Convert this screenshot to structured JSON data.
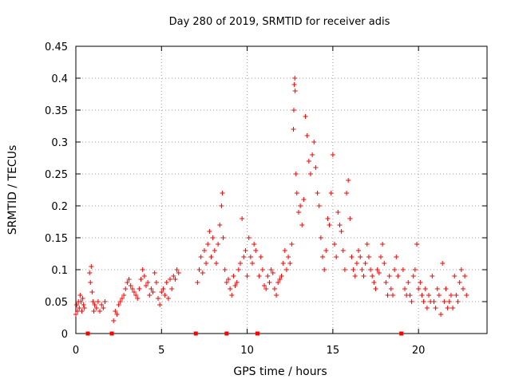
{
  "chart_data": {
    "type": "scatter",
    "title": "Day 280 of 2019, SRMTID for receiver adis",
    "xlabel": "GPS time / hours",
    "ylabel": "SRMTID / TECUs",
    "xlim": [
      0,
      24
    ],
    "ylim": [
      0,
      0.45
    ],
    "xticks": [
      0,
      5,
      10,
      15,
      20
    ],
    "xtick_labels": [
      "0",
      "5",
      "10",
      "15",
      "20"
    ],
    "yticks": [
      0,
      0.05,
      0.1,
      0.15,
      0.2,
      0.25,
      0.3,
      0.35,
      0.4,
      0.45
    ],
    "ytick_labels": [
      "0",
      "0.05",
      "0.1",
      "0.15",
      "0.2",
      "0.25",
      "0.3",
      "0.35",
      "0.4",
      "0.45"
    ],
    "grid": true,
    "marker": "+",
    "colors": {
      "series": "#ff0000",
      "gap_marker": "#ff0000",
      "grid": "#a0a0a0",
      "axis": "#000000"
    },
    "gap_markers_x": [
      0.7,
      2.1,
      7.0,
      8.8,
      10.6,
      19.0
    ],
    "series": [
      {
        "name": "SRMTID",
        "points": [
          [
            0.0,
            0.03
          ],
          [
            0.05,
            0.045
          ],
          [
            0.1,
            0.035
          ],
          [
            0.15,
            0.05
          ],
          [
            0.2,
            0.04
          ],
          [
            0.25,
            0.06
          ],
          [
            0.3,
            0.05
          ],
          [
            0.35,
            0.035
          ],
          [
            0.4,
            0.055
          ],
          [
            0.45,
            0.045
          ],
          [
            0.5,
            0.04
          ],
          [
            0.8,
            0.095
          ],
          [
            0.85,
            0.08
          ],
          [
            0.9,
            0.105
          ],
          [
            0.95,
            0.065
          ],
          [
            1.0,
            0.05
          ],
          [
            1.05,
            0.035
          ],
          [
            1.1,
            0.045
          ],
          [
            1.2,
            0.04
          ],
          [
            1.3,
            0.05
          ],
          [
            1.4,
            0.035
          ],
          [
            1.5,
            0.045
          ],
          [
            1.6,
            0.04
          ],
          [
            1.7,
            0.05
          ],
          [
            2.2,
            0.02
          ],
          [
            2.3,
            0.035
          ],
          [
            2.4,
            0.03
          ],
          [
            2.5,
            0.045
          ],
          [
            2.6,
            0.05
          ],
          [
            2.7,
            0.055
          ],
          [
            2.8,
            0.06
          ],
          [
            2.9,
            0.07
          ],
          [
            3.0,
            0.08
          ],
          [
            3.1,
            0.085
          ],
          [
            3.2,
            0.075
          ],
          [
            3.3,
            0.07
          ],
          [
            3.4,
            0.065
          ],
          [
            3.5,
            0.06
          ],
          [
            3.6,
            0.055
          ],
          [
            3.7,
            0.07
          ],
          [
            3.8,
            0.085
          ],
          [
            3.9,
            0.1
          ],
          [
            4.0,
            0.09
          ],
          [
            4.1,
            0.075
          ],
          [
            4.2,
            0.08
          ],
          [
            4.3,
            0.06
          ],
          [
            4.4,
            0.07
          ],
          [
            4.5,
            0.065
          ],
          [
            4.6,
            0.095
          ],
          [
            4.7,
            0.08
          ],
          [
            4.8,
            0.055
          ],
          [
            4.9,
            0.045
          ],
          [
            5.0,
            0.065
          ],
          [
            5.1,
            0.07
          ],
          [
            5.2,
            0.06
          ],
          [
            5.3,
            0.08
          ],
          [
            5.4,
            0.055
          ],
          [
            5.5,
            0.085
          ],
          [
            5.6,
            0.07
          ],
          [
            5.7,
            0.09
          ],
          [
            5.8,
            0.085
          ],
          [
            5.9,
            0.1
          ],
          [
            6.0,
            0.095
          ],
          [
            7.1,
            0.08
          ],
          [
            7.2,
            0.1
          ],
          [
            7.3,
            0.12
          ],
          [
            7.4,
            0.095
          ],
          [
            7.5,
            0.13
          ],
          [
            7.6,
            0.11
          ],
          [
            7.7,
            0.14
          ],
          [
            7.8,
            0.16
          ],
          [
            7.9,
            0.12
          ],
          [
            8.0,
            0.15
          ],
          [
            8.1,
            0.13
          ],
          [
            8.2,
            0.11
          ],
          [
            8.3,
            0.14
          ],
          [
            8.4,
            0.17
          ],
          [
            8.5,
            0.2
          ],
          [
            8.55,
            0.22
          ],
          [
            8.6,
            0.15
          ],
          [
            8.7,
            0.1
          ],
          [
            8.8,
            0.08
          ],
          [
            8.9,
            0.085
          ],
          [
            9.0,
            0.07
          ],
          [
            9.1,
            0.06
          ],
          [
            9.2,
            0.09
          ],
          [
            9.3,
            0.075
          ],
          [
            9.4,
            0.08
          ],
          [
            9.5,
            0.1
          ],
          [
            9.6,
            0.11
          ],
          [
            9.7,
            0.18
          ],
          [
            9.8,
            0.12
          ],
          [
            9.9,
            0.13
          ],
          [
            10.0,
            0.09
          ],
          [
            10.1,
            0.15
          ],
          [
            10.2,
            0.12
          ],
          [
            10.3,
            0.11
          ],
          [
            10.4,
            0.14
          ],
          [
            10.5,
            0.13
          ],
          [
            10.7,
            0.09
          ],
          [
            10.8,
            0.12
          ],
          [
            10.9,
            0.1
          ],
          [
            11.0,
            0.075
          ],
          [
            11.1,
            0.07
          ],
          [
            11.2,
            0.09
          ],
          [
            11.3,
            0.08
          ],
          [
            11.4,
            0.1
          ],
          [
            11.5,
            0.095
          ],
          [
            11.6,
            0.07
          ],
          [
            11.7,
            0.06
          ],
          [
            11.8,
            0.08
          ],
          [
            11.9,
            0.085
          ],
          [
            12.0,
            0.09
          ],
          [
            12.1,
            0.11
          ],
          [
            12.2,
            0.13
          ],
          [
            12.3,
            0.1
          ],
          [
            12.4,
            0.12
          ],
          [
            12.5,
            0.11
          ],
          [
            12.6,
            0.14
          ],
          [
            12.7,
            0.32
          ],
          [
            12.72,
            0.35
          ],
          [
            12.75,
            0.39
          ],
          [
            12.78,
            0.4
          ],
          [
            12.8,
            0.38
          ],
          [
            12.85,
            0.25
          ],
          [
            12.9,
            0.22
          ],
          [
            13.0,
            0.19
          ],
          [
            13.1,
            0.2
          ],
          [
            13.2,
            0.17
          ],
          [
            13.3,
            0.21
          ],
          [
            13.4,
            0.34
          ],
          [
            13.5,
            0.31
          ],
          [
            13.6,
            0.27
          ],
          [
            13.7,
            0.25
          ],
          [
            13.8,
            0.28
          ],
          [
            13.9,
            0.3
          ],
          [
            14.0,
            0.26
          ],
          [
            14.1,
            0.22
          ],
          [
            14.2,
            0.2
          ],
          [
            14.3,
            0.15
          ],
          [
            14.4,
            0.12
          ],
          [
            14.5,
            0.1
          ],
          [
            14.6,
            0.13
          ],
          [
            14.7,
            0.18
          ],
          [
            14.8,
            0.17
          ],
          [
            14.9,
            0.22
          ],
          [
            15.0,
            0.28
          ],
          [
            15.1,
            0.14
          ],
          [
            15.2,
            0.12
          ],
          [
            15.3,
            0.19
          ],
          [
            15.4,
            0.17
          ],
          [
            15.5,
            0.16
          ],
          [
            15.6,
            0.13
          ],
          [
            15.7,
            0.1
          ],
          [
            15.8,
            0.22
          ],
          [
            15.9,
            0.24
          ],
          [
            16.0,
            0.18
          ],
          [
            16.1,
            0.12
          ],
          [
            16.2,
            0.1
          ],
          [
            16.3,
            0.09
          ],
          [
            16.4,
            0.11
          ],
          [
            16.5,
            0.13
          ],
          [
            16.6,
            0.12
          ],
          [
            16.7,
            0.1
          ],
          [
            16.8,
            0.09
          ],
          [
            16.9,
            0.11
          ],
          [
            17.0,
            0.14
          ],
          [
            17.1,
            0.12
          ],
          [
            17.2,
            0.1
          ],
          [
            17.3,
            0.09
          ],
          [
            17.4,
            0.08
          ],
          [
            17.5,
            0.07
          ],
          [
            17.6,
            0.1
          ],
          [
            17.7,
            0.095
          ],
          [
            17.8,
            0.12
          ],
          [
            17.9,
            0.14
          ],
          [
            18.0,
            0.11
          ],
          [
            18.1,
            0.08
          ],
          [
            18.2,
            0.06
          ],
          [
            18.3,
            0.09
          ],
          [
            18.4,
            0.07
          ],
          [
            18.5,
            0.06
          ],
          [
            18.6,
            0.1
          ],
          [
            18.7,
            0.12
          ],
          [
            18.8,
            0.09
          ],
          [
            19.1,
            0.1
          ],
          [
            19.2,
            0.07
          ],
          [
            19.3,
            0.06
          ],
          [
            19.4,
            0.08
          ],
          [
            19.5,
            0.06
          ],
          [
            19.6,
            0.05
          ],
          [
            19.7,
            0.09
          ],
          [
            19.8,
            0.1
          ],
          [
            19.9,
            0.14
          ],
          [
            20.0,
            0.07
          ],
          [
            20.1,
            0.08
          ],
          [
            20.2,
            0.06
          ],
          [
            20.3,
            0.05
          ],
          [
            20.4,
            0.07
          ],
          [
            20.5,
            0.04
          ],
          [
            20.6,
            0.06
          ],
          [
            20.7,
            0.05
          ],
          [
            20.8,
            0.09
          ],
          [
            20.9,
            0.05
          ],
          [
            21.0,
            0.04
          ],
          [
            21.1,
            0.07
          ],
          [
            21.2,
            0.06
          ],
          [
            21.3,
            0.03
          ],
          [
            21.4,
            0.11
          ],
          [
            21.5,
            0.05
          ],
          [
            21.6,
            0.07
          ],
          [
            21.7,
            0.04
          ],
          [
            21.8,
            0.05
          ],
          [
            21.9,
            0.06
          ],
          [
            22.0,
            0.04
          ],
          [
            22.1,
            0.09
          ],
          [
            22.2,
            0.06
          ],
          [
            22.3,
            0.05
          ],
          [
            22.4,
            0.08
          ],
          [
            22.5,
            0.1
          ],
          [
            22.6,
            0.07
          ],
          [
            22.7,
            0.09
          ],
          [
            22.8,
            0.06
          ]
        ]
      }
    ]
  }
}
